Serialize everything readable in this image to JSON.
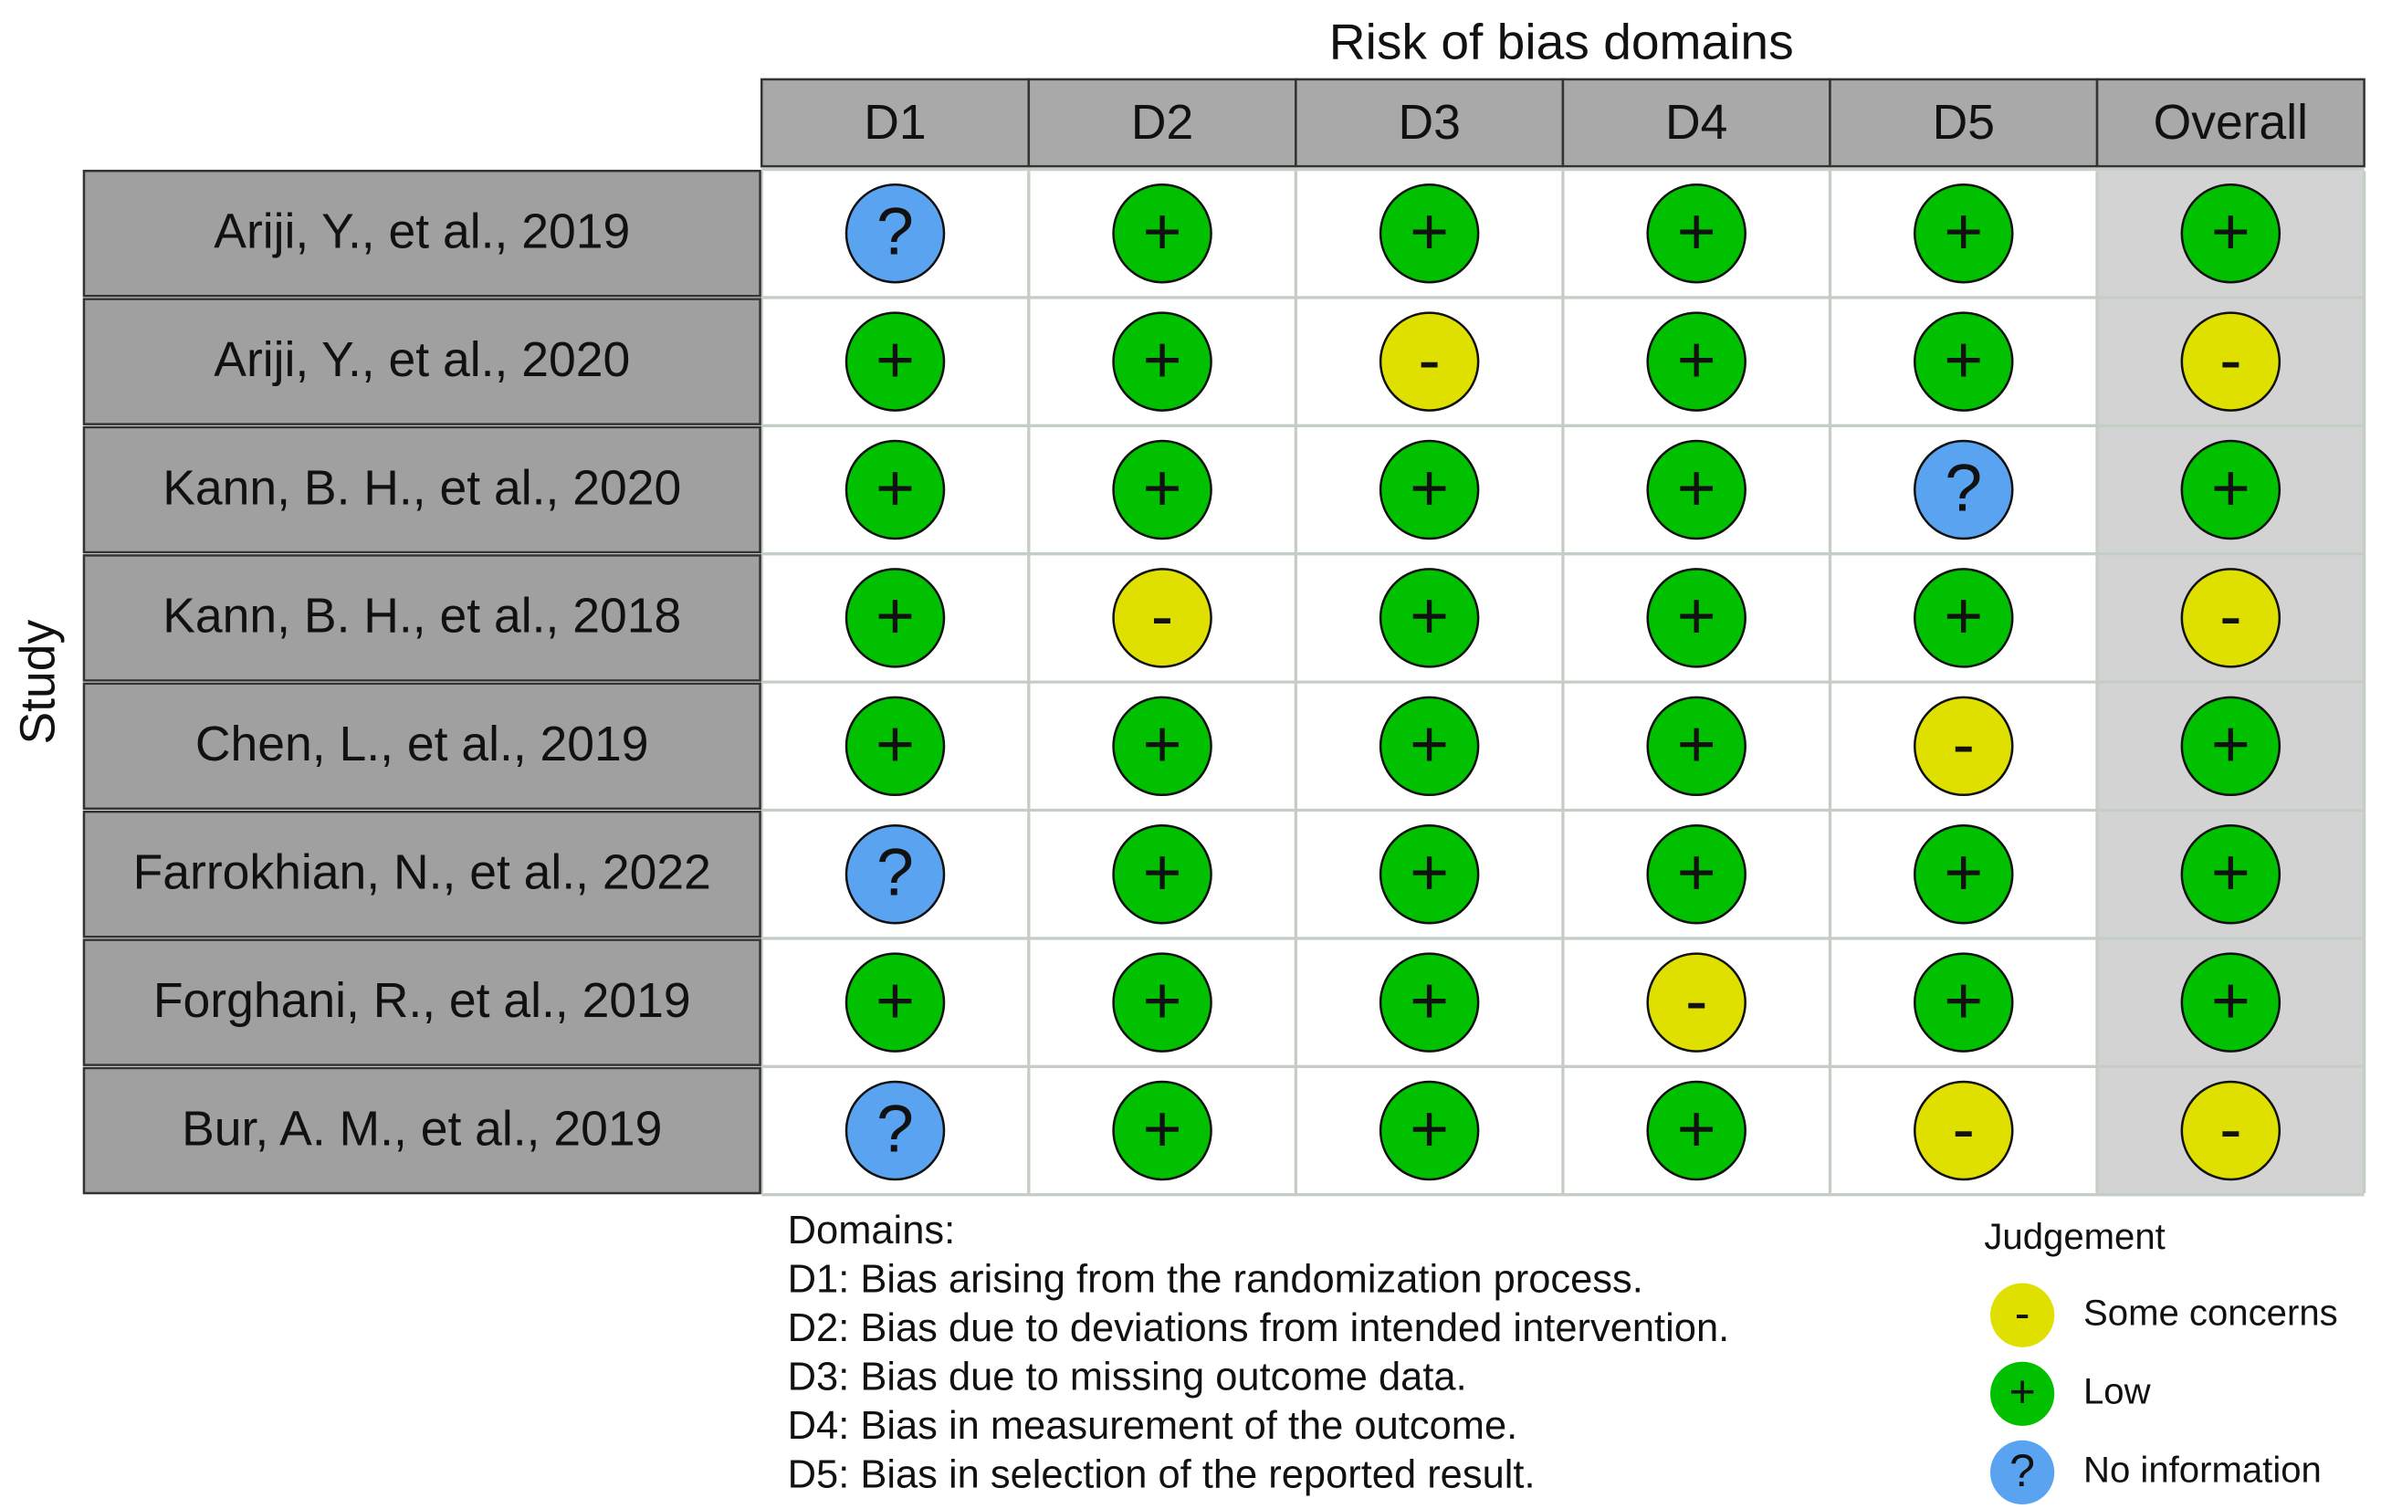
{
  "chart_data": {
    "type": "traffic-light",
    "title": "Risk of bias domains",
    "y_label": "Study",
    "columns": [
      "D1",
      "D2",
      "D3",
      "D4",
      "D5",
      "Overall"
    ],
    "rows": [
      {
        "study": "Ariji, Y., et al., 2019",
        "judgements": [
          "?",
          "+",
          "+",
          "+",
          "+",
          "+"
        ]
      },
      {
        "study": "Ariji, Y., et al., 2020",
        "judgements": [
          "+",
          "+",
          "-",
          "+",
          "+",
          "-"
        ]
      },
      {
        "study": "Kann, B. H., et al., 2020",
        "judgements": [
          "+",
          "+",
          "+",
          "+",
          "?",
          "+"
        ]
      },
      {
        "study": "Kann, B. H., et al., 2018",
        "judgements": [
          "+",
          "-",
          "+",
          "+",
          "+",
          "-"
        ]
      },
      {
        "study": "Chen, L., et al., 2019",
        "judgements": [
          "+",
          "+",
          "+",
          "+",
          "-",
          "+"
        ]
      },
      {
        "study": "Farrokhian, N., et al., 2022",
        "judgements": [
          "?",
          "+",
          "+",
          "+",
          "+",
          "+"
        ]
      },
      {
        "study": "Forghani, R., et al., 2019",
        "judgements": [
          "+",
          "+",
          "+",
          "-",
          "+",
          "+"
        ]
      },
      {
        "study": "Bur, A. M., et al., 2019",
        "judgements": [
          "?",
          "+",
          "+",
          "+",
          "-",
          "-"
        ]
      }
    ],
    "domains_title": "Domains:",
    "domains": [
      "D1: Bias arising from the randomization process.",
      "D2: Bias due to deviations from intended intervention.",
      "D3: Bias due to missing outcome data.",
      "D4: Bias in measurement of the outcome.",
      "D5: Bias in selection of the reported result."
    ],
    "legend_title": "Judgement",
    "legend": [
      {
        "symbol": "-",
        "label": "Some concerns",
        "color": "#e0e000"
      },
      {
        "symbol": "+",
        "label": "Low",
        "color": "#00c000"
      },
      {
        "symbol": "?",
        "label": "No information",
        "color": "#5aa3f0"
      }
    ]
  }
}
